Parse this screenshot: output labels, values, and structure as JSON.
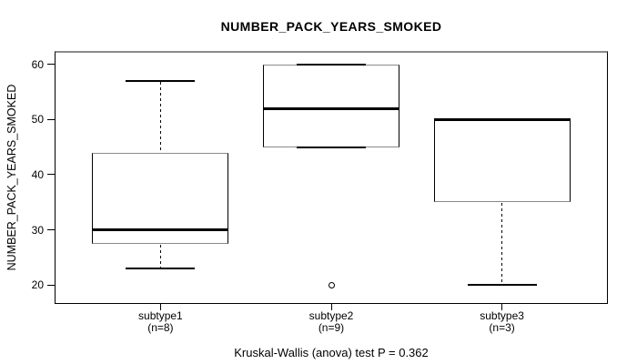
{
  "title": "NUMBER_PACK_YEARS_SMOKED",
  "caption": "Kruskal-Wallis (anova) test P = 0.362",
  "chart_data": {
    "type": "boxplot",
    "title": "NUMBER_PACK_YEARS_SMOKED",
    "ylabel": "NUMBER_PACK_YEARS_SMOKED",
    "xlabel": "",
    "grid": false,
    "legend": "none",
    "ylim": [
      16.6,
      62.4
    ],
    "yticks": [
      20,
      30,
      40,
      50,
      60
    ],
    "categories": [
      "subtype1",
      "subtype2",
      "subtype3"
    ],
    "category_sublabels": [
      "(n=8)",
      "(n=9)",
      "(n=3)"
    ],
    "series": [
      {
        "name": "subtype1",
        "n": 8,
        "whisker_low": 23,
        "q1": 27.5,
        "median": 30,
        "q3": 44,
        "whisker_high": 57,
        "outliers": []
      },
      {
        "name": "subtype2",
        "n": 9,
        "whisker_low": 45,
        "q1": 45,
        "median": 52,
        "q3": 60,
        "whisker_high": 60,
        "outliers": [
          20
        ]
      },
      {
        "name": "subtype3",
        "n": 3,
        "whisker_low": 20,
        "q1": 35,
        "median": 50,
        "q3": 50,
        "whisker_high": 50,
        "outliers": []
      }
    ],
    "annotation": "Kruskal-Wallis (anova) test P = 0.362"
  }
}
